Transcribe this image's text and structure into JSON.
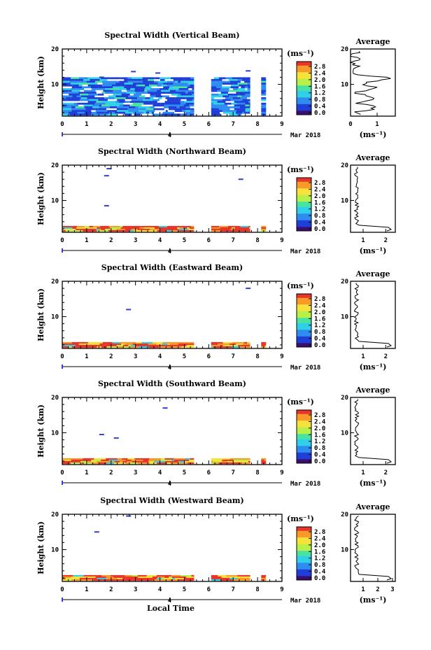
{
  "chart_data": [
    {
      "type": "heatmap",
      "title": "Spectral Width (Vertical Beam)",
      "ylabel": "Height (km)",
      "xlim": [
        0,
        9
      ],
      "ylim": [
        1,
        20
      ],
      "x_ticks": [
        "0",
        "1",
        "2",
        "3",
        "4",
        "5",
        "6",
        "7",
        "8",
        "9"
      ],
      "y_ticks": [
        "10",
        "20"
      ],
      "date_marker": "4",
      "date_label": "Mar 2018",
      "colorbar": {
        "unit": "(ms⁻¹)",
        "ticks": [
          "2.8",
          "2.4",
          "2.0",
          "1.6",
          "1.2",
          "0.8",
          "0.4",
          "0.0"
        ]
      },
      "fill": {
        "segments": [
          [
            0,
            5.4
          ],
          [
            6.1,
            7.7
          ],
          [
            8.15,
            8.35
          ]
        ],
        "height_range": [
          1.5,
          12
        ],
        "dominant": "blue-cyan"
      },
      "sparse_marks": [
        [
          1.6,
          12.0
        ],
        [
          2.9,
          13.6
        ],
        [
          3.9,
          13.2
        ],
        [
          7.6,
          13.8
        ]
      ],
      "average": {
        "title": "Average",
        "xlabel": "(ms⁻¹)",
        "x_ticks": [
          "0",
          "1"
        ],
        "y_ticks": [
          "10",
          "20"
        ]
      }
    },
    {
      "type": "heatmap",
      "title": "Spectral Width (Northward Beam)",
      "ylabel": "Height (km)",
      "xlim": [
        0,
        9
      ],
      "ylim": [
        1,
        20
      ],
      "x_ticks": [
        "0",
        "1",
        "2",
        "3",
        "4",
        "5",
        "6",
        "7",
        "8",
        "9"
      ],
      "y_ticks": [
        "10",
        "20"
      ],
      "date_marker": "4",
      "date_label": "Mar 2018",
      "colorbar": {
        "unit": "(ms⁻¹)",
        "ticks": [
          "2.8",
          "2.4",
          "2.0",
          "1.6",
          "1.2",
          "0.8",
          "0.4",
          "0.0"
        ]
      },
      "fill": {
        "segments": [
          [
            0,
            5.4
          ],
          [
            6.1,
            7.7
          ],
          [
            8.15,
            8.35
          ]
        ],
        "height_range": [
          1.5,
          2.8
        ],
        "dominant": "red-orange"
      },
      "sparse_marks": [
        [
          1.9,
          19.0
        ],
        [
          1.8,
          17.0
        ],
        [
          1.8,
          8.5
        ],
        [
          7.3,
          16.0
        ]
      ],
      "average": {
        "title": "Average",
        "xlabel": "(ms⁻¹)",
        "x_ticks": [
          "1",
          "2"
        ],
        "y_ticks": [
          "10",
          "20"
        ]
      }
    },
    {
      "type": "heatmap",
      "title": "Spectral Width (Eastward Beam)",
      "ylabel": "Height (km)",
      "xlim": [
        0,
        9
      ],
      "ylim": [
        1,
        20
      ],
      "x_ticks": [
        "0",
        "1",
        "2",
        "3",
        "4",
        "5",
        "6",
        "7",
        "8",
        "9"
      ],
      "y_ticks": [
        "10",
        "20"
      ],
      "date_marker": "4",
      "date_label": "Mar 2018",
      "colorbar": {
        "unit": "(ms⁻¹)",
        "ticks": [
          "2.8",
          "2.4",
          "2.0",
          "1.6",
          "1.2",
          "0.8",
          "0.4",
          "0.0"
        ]
      },
      "fill": {
        "segments": [
          [
            0,
            5.4
          ],
          [
            6.1,
            7.7
          ],
          [
            8.15,
            8.35
          ]
        ],
        "height_range": [
          1.5,
          2.8
        ],
        "dominant": "red-orange"
      },
      "sparse_marks": [
        [
          2.7,
          12.0
        ],
        [
          7.6,
          18.0
        ]
      ],
      "average": {
        "title": "Average",
        "xlabel": "(ms⁻¹)",
        "x_ticks": [
          "1",
          "2"
        ],
        "y_ticks": [
          "10",
          "20"
        ]
      }
    },
    {
      "type": "heatmap",
      "title": "Spectral Width (Southward Beam)",
      "ylabel": "Height (km)",
      "xlim": [
        0,
        9
      ],
      "ylim": [
        1,
        20
      ],
      "x_ticks": [
        "0",
        "1",
        "2",
        "3",
        "4",
        "5",
        "6",
        "7",
        "8",
        "9"
      ],
      "y_ticks": [
        "10",
        "20"
      ],
      "date_marker": "4",
      "date_label": "Mar 2018",
      "colorbar": {
        "unit": "(ms⁻¹)",
        "ticks": [
          "2.8",
          "2.4",
          "2.0",
          "1.6",
          "1.2",
          "0.8",
          "0.4",
          "0.0"
        ]
      },
      "fill": {
        "segments": [
          [
            0,
            5.4
          ],
          [
            6.1,
            7.7
          ],
          [
            8.15,
            8.35
          ]
        ],
        "height_range": [
          1.5,
          2.8
        ],
        "dominant": "red-orange"
      },
      "sparse_marks": [
        [
          1.6,
          9.5
        ],
        [
          2.2,
          8.5
        ],
        [
          4.2,
          17.0
        ]
      ],
      "average": {
        "title": "Average",
        "xlabel": "(ms⁻¹)",
        "x_ticks": [
          "1",
          "2"
        ],
        "y_ticks": [
          "10",
          "20"
        ]
      }
    },
    {
      "type": "heatmap",
      "title": "Spectral Width (Westward Beam)",
      "ylabel": "Height (km)",
      "xlabel": "Local Time",
      "xlim": [
        0,
        9
      ],
      "ylim": [
        1,
        20
      ],
      "x_ticks": [
        "0",
        "1",
        "2",
        "3",
        "4",
        "5",
        "6",
        "7",
        "8",
        "9"
      ],
      "y_ticks": [
        "10",
        "20"
      ],
      "date_marker": "4",
      "date_label": "Mar 2018",
      "colorbar": {
        "unit": "(ms⁻¹)",
        "ticks": [
          "2.8",
          "2.4",
          "2.0",
          "1.6",
          "1.2",
          "0.8",
          "0.4",
          "0.0"
        ]
      },
      "fill": {
        "segments": [
          [
            0,
            5.4
          ],
          [
            6.1,
            7.7
          ],
          [
            8.15,
            8.35
          ]
        ],
        "height_range": [
          1.5,
          2.8
        ],
        "dominant": "red-orange"
      },
      "sparse_marks": [
        [
          1.4,
          15.0
        ],
        [
          2.7,
          19.5
        ]
      ],
      "average": {
        "title": "Average",
        "xlabel": "(ms⁻¹)",
        "x_ticks": [
          "1",
          "2",
          "3"
        ],
        "y_ticks": [
          "10",
          "20"
        ]
      }
    }
  ],
  "colors": {
    "colormap": [
      "#3a0f6e",
      "#1f3fd8",
      "#2f8cf0",
      "#2fd0e8",
      "#49e3a0",
      "#b8f04a",
      "#f7e23a",
      "#f79a2a",
      "#e8342a"
    ],
    "sparse_mark": "#3340c8",
    "axis": "#000000"
  }
}
